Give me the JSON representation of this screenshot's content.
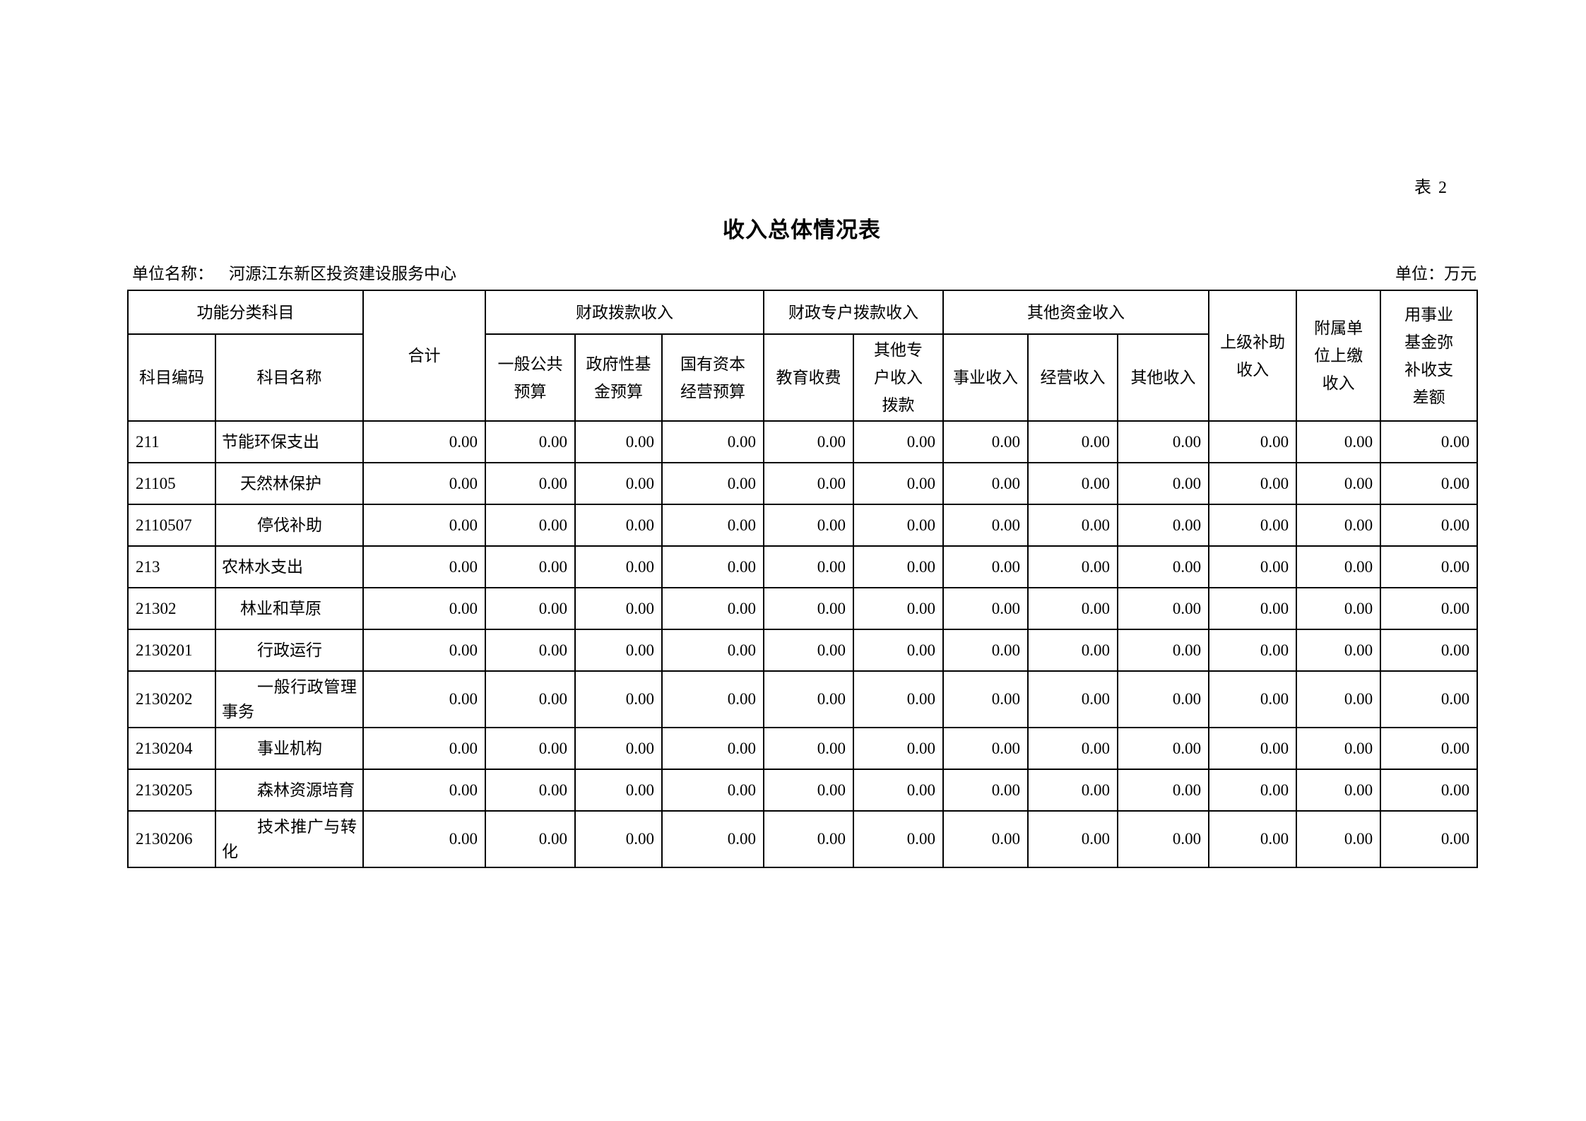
{
  "page": {
    "corner_tag": "表 2",
    "title": "收入总体情况表",
    "unit_name_label": "单位名称：",
    "unit_name_value": "河源江东新区投资建设服务中心",
    "unit_of_measure": "单位：万元"
  },
  "table": {
    "groups": {
      "functional_category": "功能分类科目",
      "fiscal_appropriation": "财政拨款收入",
      "fiscal_special_account": "财政专户拨款收入",
      "other_funds": "其他资金收入"
    },
    "headers": {
      "subject_code": "科目编码",
      "subject_name": "科目名称",
      "total": "合计",
      "general_public_budget": "一般公共\n预算",
      "govt_fund_budget": "政府性基\n金预算",
      "state_capital_budget": "国有资本\n经营预算",
      "education_fee": "教育收费",
      "other_special_account": "其他专\n户收入\n拨款",
      "business_income": "事业收入",
      "operating_income": "经营收入",
      "other_income": "其他收入",
      "superior_subsidy": "上级补助\n收入",
      "affiliated_unit_payment": "附属单\n位上缴\n收入",
      "fund_deficit_cover": "用事业\n基金弥\n补收支\n差额"
    },
    "rows": [
      {
        "code": "211",
        "name": "节能环保支出",
        "level": 0,
        "values": [
          "0.00",
          "0.00",
          "0.00",
          "0.00",
          "0.00",
          "0.00",
          "0.00",
          "0.00",
          "0.00",
          "0.00",
          "0.00",
          "0.00"
        ]
      },
      {
        "code": "21105",
        "name": "天然林保护",
        "level": 1,
        "values": [
          "0.00",
          "0.00",
          "0.00",
          "0.00",
          "0.00",
          "0.00",
          "0.00",
          "0.00",
          "0.00",
          "0.00",
          "0.00",
          "0.00"
        ]
      },
      {
        "code": "2110507",
        "name": "停伐补助",
        "level": 2,
        "values": [
          "0.00",
          "0.00",
          "0.00",
          "0.00",
          "0.00",
          "0.00",
          "0.00",
          "0.00",
          "0.00",
          "0.00",
          "0.00",
          "0.00"
        ]
      },
      {
        "code": "213",
        "name": "农林水支出",
        "level": 0,
        "values": [
          "0.00",
          "0.00",
          "0.00",
          "0.00",
          "0.00",
          "0.00",
          "0.00",
          "0.00",
          "0.00",
          "0.00",
          "0.00",
          "0.00"
        ]
      },
      {
        "code": "21302",
        "name": "林业和草原",
        "level": 1,
        "values": [
          "0.00",
          "0.00",
          "0.00",
          "0.00",
          "0.00",
          "0.00",
          "0.00",
          "0.00",
          "0.00",
          "0.00",
          "0.00",
          "0.00"
        ]
      },
      {
        "code": "2130201",
        "name": "行政运行",
        "level": 2,
        "values": [
          "0.00",
          "0.00",
          "0.00",
          "0.00",
          "0.00",
          "0.00",
          "0.00",
          "0.00",
          "0.00",
          "0.00",
          "0.00",
          "0.00"
        ]
      },
      {
        "code": "2130202",
        "name": "一般行政管理事务",
        "level": 2,
        "values": [
          "0.00",
          "0.00",
          "0.00",
          "0.00",
          "0.00",
          "0.00",
          "0.00",
          "0.00",
          "0.00",
          "0.00",
          "0.00",
          "0.00"
        ]
      },
      {
        "code": "2130204",
        "name": "事业机构",
        "level": 2,
        "values": [
          "0.00",
          "0.00",
          "0.00",
          "0.00",
          "0.00",
          "0.00",
          "0.00",
          "0.00",
          "0.00",
          "0.00",
          "0.00",
          "0.00"
        ]
      },
      {
        "code": "2130205",
        "name": "森林资源培育",
        "level": 2,
        "values": [
          "0.00",
          "0.00",
          "0.00",
          "0.00",
          "0.00",
          "0.00",
          "0.00",
          "0.00",
          "0.00",
          "0.00",
          "0.00",
          "0.00"
        ]
      },
      {
        "code": "2130206",
        "name": "技术推广与转化",
        "level": 2,
        "values": [
          "0.00",
          "0.00",
          "0.00",
          "0.00",
          "0.00",
          "0.00",
          "0.00",
          "0.00",
          "0.00",
          "0.00",
          "0.00",
          "0.00"
        ]
      }
    ]
  }
}
